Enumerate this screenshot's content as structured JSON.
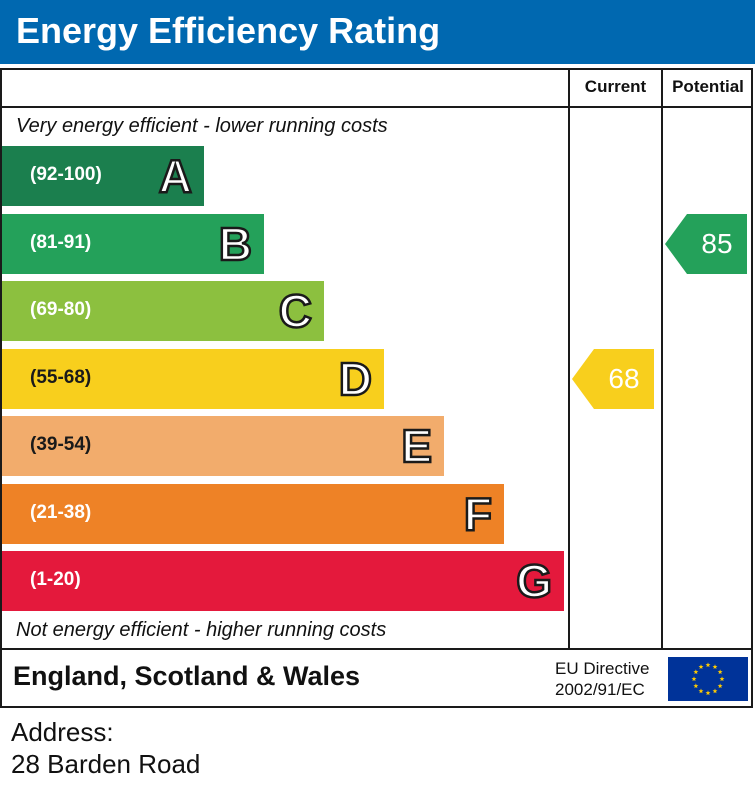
{
  "header": {
    "title": "Energy Efficiency Rating"
  },
  "columns": {
    "current": "Current",
    "potential": "Potential"
  },
  "captions": {
    "top": "Very energy efficient - lower running costs",
    "bottom": "Not energy efficient - higher running costs"
  },
  "chart_data": {
    "type": "bar",
    "title": "Energy Efficiency Rating",
    "categories": [
      "A",
      "B",
      "C",
      "D",
      "E",
      "F",
      "G"
    ],
    "ranges": [
      "(92-100)",
      "(81-91)",
      "(69-80)",
      "(55-68)",
      "(39-54)",
      "(21-38)",
      "(1-20)"
    ],
    "colors": [
      "#1b7f4e",
      "#24a15a",
      "#8cc03f",
      "#f8cf1d",
      "#f2ac6c",
      "#ee8226",
      "#e4193c"
    ],
    "current": {
      "value": 68,
      "band": "D",
      "color": "#f8cf1d"
    },
    "potential": {
      "value": 85,
      "band": "B",
      "color": "#24a15a"
    }
  },
  "footer": {
    "country": "England, Scotland & Wales",
    "directive_line1": "EU Directive",
    "directive_line2": "2002/91/EC"
  },
  "address": {
    "label": "Address:",
    "value": "28 Barden Road"
  }
}
